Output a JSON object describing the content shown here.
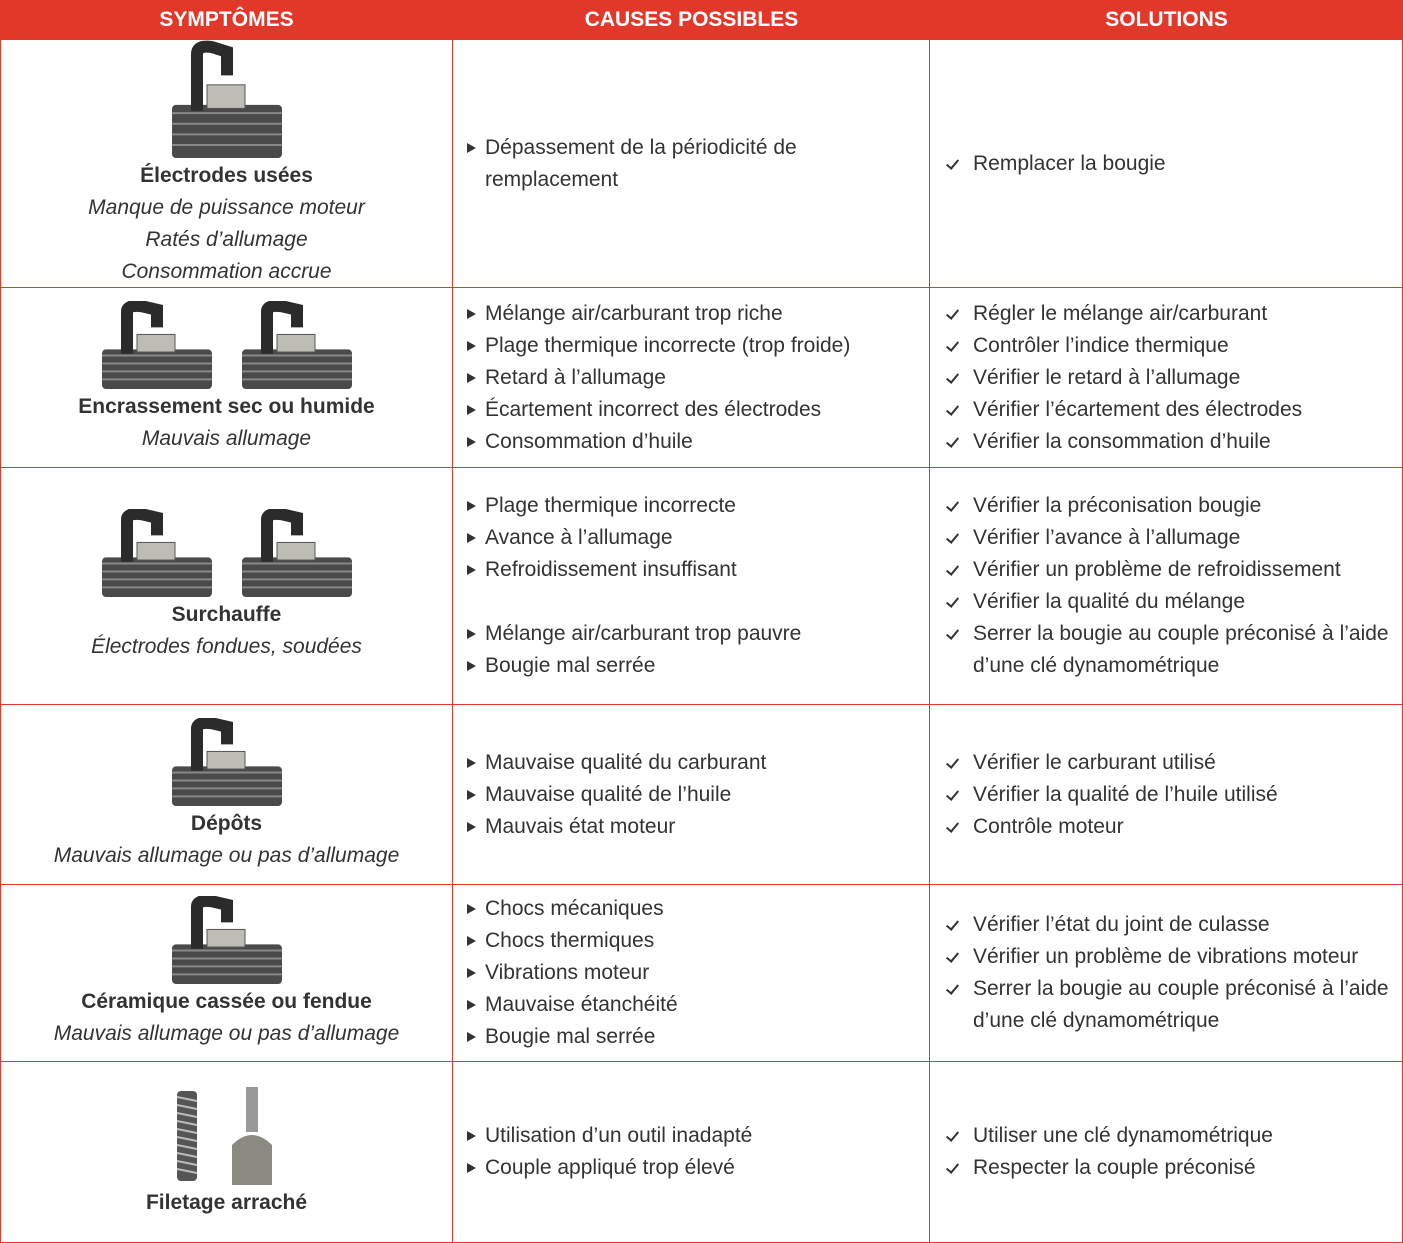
{
  "header": {
    "columns": [
      "SYMPTÔMES",
      "CAUSES POSSIBLES",
      "SOLUTIONS"
    ]
  },
  "rows": [
    {
      "symptom": "Électrodes usées",
      "details": [
        "Manque de puissance moteur",
        "Ratés d’allumage",
        "Consommation accrue"
      ],
      "causes": [
        "Dépassement de la périodicité de remplacement"
      ],
      "solutions": [
        "Remplacer la bougie"
      ]
    },
    {
      "symptom": "Encrassement sec ou humide",
      "details": [
        "Mauvais allumage"
      ],
      "causes": [
        "Mélange air/carburant trop riche",
        "Plage thermique incorrecte (trop froide)",
        "Retard à l’allumage",
        "Écartement incorrect des électrodes",
        "Consommation d’huile"
      ],
      "solutions": [
        "Régler le mélange air/carburant",
        "Contrôler l’indice thermique",
        "Vérifier le retard à l’allumage",
        "Vérifier l’écartement des électrodes",
        "Vérifier la consommation d’huile"
      ]
    },
    {
      "symptom": "Surchauffe",
      "details": [
        "Électrodes fondues, soudées"
      ],
      "causes": [
        "Plage thermique incorrecte",
        "Avance à l’allumage",
        "Refroidissement insuffisant",
        "Mélange air/carburant trop pauvre",
        "Bougie mal serrée"
      ],
      "solutions": [
        "Vérifier la préconisation bougie",
        "Vérifier l’avance à l’allumage",
        "Vérifier un problème de refroidissement",
        "Vérifier la qualité du mélange",
        "Serrer la bougie au couple préconisé à l’aide d’une clé dynamométrique"
      ]
    },
    {
      "symptom": "Dépôts",
      "details": [
        "Mauvais allumage ou pas d’allumage"
      ],
      "causes": [
        "Mauvaise qualité du carburant",
        "Mauvaise qualité de l’huile",
        "Mauvais état moteur"
      ],
      "solutions": [
        "Vérifier le carburant utilisé",
        "Vérifier la qualité de l’huile utilisé",
        "Contrôle moteur"
      ]
    },
    {
      "symptom": "Céramique cassée ou fendue",
      "details": [
        "Mauvais allumage ou pas d’allumage"
      ],
      "causes": [
        "Chocs mécaniques",
        "Chocs thermiques",
        "Vibrations moteur",
        "Mauvaise étanchéité",
        "Bougie mal serrée"
      ],
      "solutions": [
        "Vérifier l’état du joint de culasse",
        "Vérifier un problème de vibrations moteur",
        "Serrer la bougie au couple préconisé à l’aide d’une clé dynamométrique"
      ]
    },
    {
      "symptom": "Filetage arraché",
      "details": [],
      "causes": [
        "Utilisation d’un outil inadapté",
        "Couple appliqué trop élevé"
      ],
      "solutions": [
        "Utiliser une clé dynamométrique",
        "Respecter la couple préconisé"
      ]
    }
  ]
}
